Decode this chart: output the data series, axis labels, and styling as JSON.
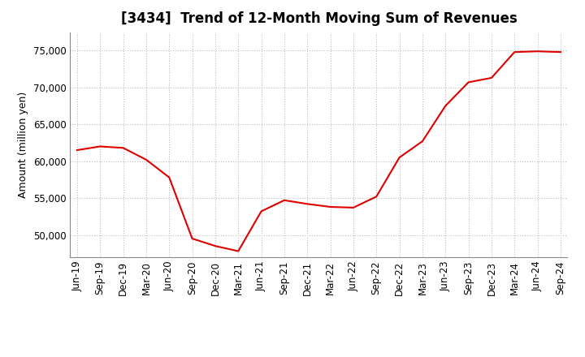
{
  "title": "[3434]  Trend of 12-Month Moving Sum of Revenues",
  "ylabel": "Amount (million yen)",
  "line_color": "#dd0000",
  "background_color": "#ffffff",
  "grid_color": "#bbbbbb",
  "ylim": [
    47000,
    77500
  ],
  "yticks": [
    50000,
    55000,
    60000,
    65000,
    70000,
    75000
  ],
  "x_labels": [
    "Jun-19",
    "Sep-19",
    "Dec-19",
    "Mar-20",
    "Jun-20",
    "Sep-20",
    "Dec-20",
    "Mar-21",
    "Jun-21",
    "Sep-21",
    "Dec-21",
    "Mar-22",
    "Jun-22",
    "Sep-22",
    "Dec-22",
    "Mar-23",
    "Jun-23",
    "Sep-23",
    "Dec-23",
    "Mar-24",
    "Jun-24",
    "Sep-24"
  ],
  "values": [
    61500,
    62000,
    61800,
    60200,
    57800,
    49500,
    48500,
    47800,
    53200,
    54700,
    54200,
    53800,
    53700,
    55200,
    60500,
    62700,
    67500,
    70700,
    71300,
    74800,
    74900,
    74800
  ],
  "title_fontsize": 12,
  "ylabel_fontsize": 9,
  "tick_fontsize": 8.5
}
